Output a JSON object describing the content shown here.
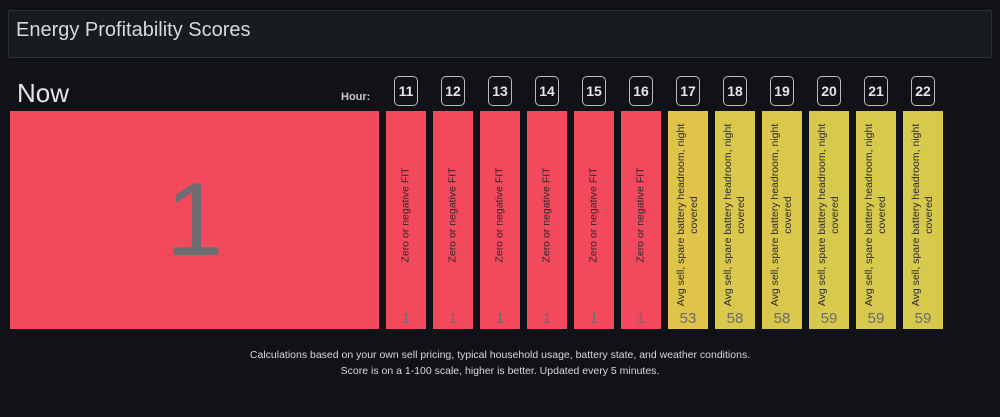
{
  "title": "Energy Profitability Scores",
  "now": {
    "label": "Now",
    "score": "1",
    "color": "#f2495c"
  },
  "hour_label": "Hour:",
  "hours": [
    {
      "hour": "11",
      "reason": "Zero or negative FIT",
      "score": "1",
      "color": "#f2495c"
    },
    {
      "hour": "12",
      "reason": "Zero or negative FIT",
      "score": "1",
      "color": "#f2495c"
    },
    {
      "hour": "13",
      "reason": "Zero or negative FIT",
      "score": "1",
      "color": "#f2495c"
    },
    {
      "hour": "14",
      "reason": "Zero or negative FIT",
      "score": "1",
      "color": "#f2495c"
    },
    {
      "hour": "15",
      "reason": "Zero or negative FIT",
      "score": "1",
      "color": "#f2495c"
    },
    {
      "hour": "16",
      "reason": "Zero or negative FIT",
      "score": "1",
      "color": "#f2495c"
    },
    {
      "hour": "17",
      "reason": "Avg sell, spare battery headroom, night covered",
      "score": "53",
      "color": "#e0c44a"
    },
    {
      "hour": "18",
      "reason": "Avg sell, spare battery headroom, night covered",
      "score": "58",
      "color": "#d9c84b"
    },
    {
      "hour": "19",
      "reason": "Avg sell, spare battery headroom, night covered",
      "score": "58",
      "color": "#d9c84b"
    },
    {
      "hour": "20",
      "reason": "Avg sell, spare battery headroom, night covered",
      "score": "59",
      "color": "#d6c94c"
    },
    {
      "hour": "21",
      "reason": "Avg sell, spare battery headroom, night covered",
      "score": "59",
      "color": "#d6c94c"
    },
    {
      "hour": "22",
      "reason": "Avg sell, spare battery headroom, night covered",
      "score": "59",
      "color": "#d6c94c"
    }
  ],
  "footer": {
    "line1": "Calculations based on your own sell pricing, typical household usage, battery state, and weather conditions.",
    "line2": "Score is on a 1-100 scale, higher is better. Updated every 5 minutes."
  }
}
